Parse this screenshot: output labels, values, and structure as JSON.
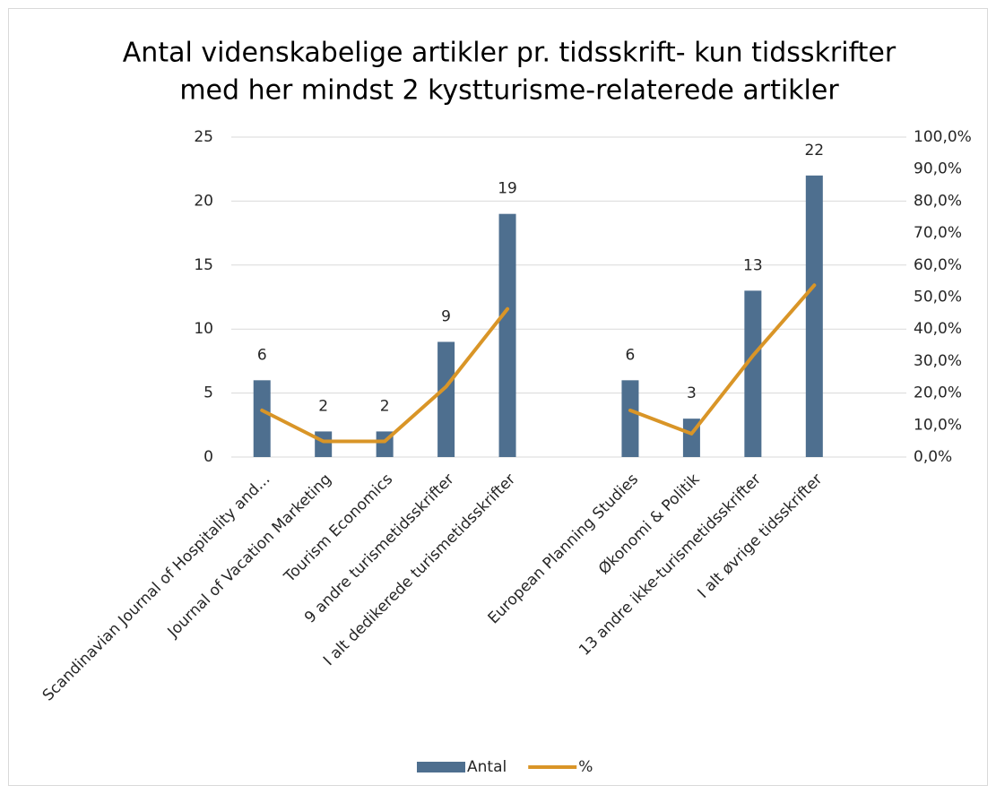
{
  "chart_data": {
    "type": "bar_line",
    "title": [
      "Antal videnskabelige artikler pr. tidsskrift- kun tidsskrifter",
      "med her mindst 2 kystturisme-relaterede artikler"
    ],
    "categories": [
      "Scandinavian Journal of Hospitality and...",
      "Journal of Vacation Marketing",
      "Tourism Economics",
      "9 andre turismetidsskrifter",
      "I alt dedikerede turismetidsskrifter",
      null,
      "European Planning Studies",
      "Økonomi & Politik",
      "13 andre ikke-turismetidsskrifter",
      "I alt øvrige tidsskrifter",
      null
    ],
    "series": [
      {
        "name": "Antal",
        "type": "bar",
        "color": "#4e6f8f",
        "values": [
          6,
          2,
          2,
          9,
          19,
          null,
          6,
          3,
          13,
          22,
          null
        ]
      },
      {
        "name": "%",
        "type": "line",
        "axis": "y2",
        "color": "#d99527",
        "values": [
          14.6,
          4.9,
          4.9,
          22.0,
          46.3,
          null,
          14.6,
          7.3,
          31.7,
          53.7,
          null
        ]
      }
    ],
    "ylim": [
      0,
      25
    ],
    "yticks": [
      0,
      5,
      10,
      15,
      20,
      25
    ],
    "y2lim": [
      0,
      100
    ],
    "y2ticks": [
      {
        "value": 0,
        "label": "0,0%"
      },
      {
        "value": 10,
        "label": "10,0%"
      },
      {
        "value": 20,
        "label": "20,0%"
      },
      {
        "value": 30,
        "label": "30,0%"
      },
      {
        "value": 40,
        "label": "40,0%"
      },
      {
        "value": 50,
        "label": "50,0%"
      },
      {
        "value": 60,
        "label": "60,0%"
      },
      {
        "value": 70,
        "label": "70,0%"
      },
      {
        "value": 80,
        "label": "80,0%"
      },
      {
        "value": 90,
        "label": "90,0%"
      },
      {
        "value": 100,
        "label": "100,0%"
      }
    ],
    "grid": true,
    "legend": "bottom"
  }
}
